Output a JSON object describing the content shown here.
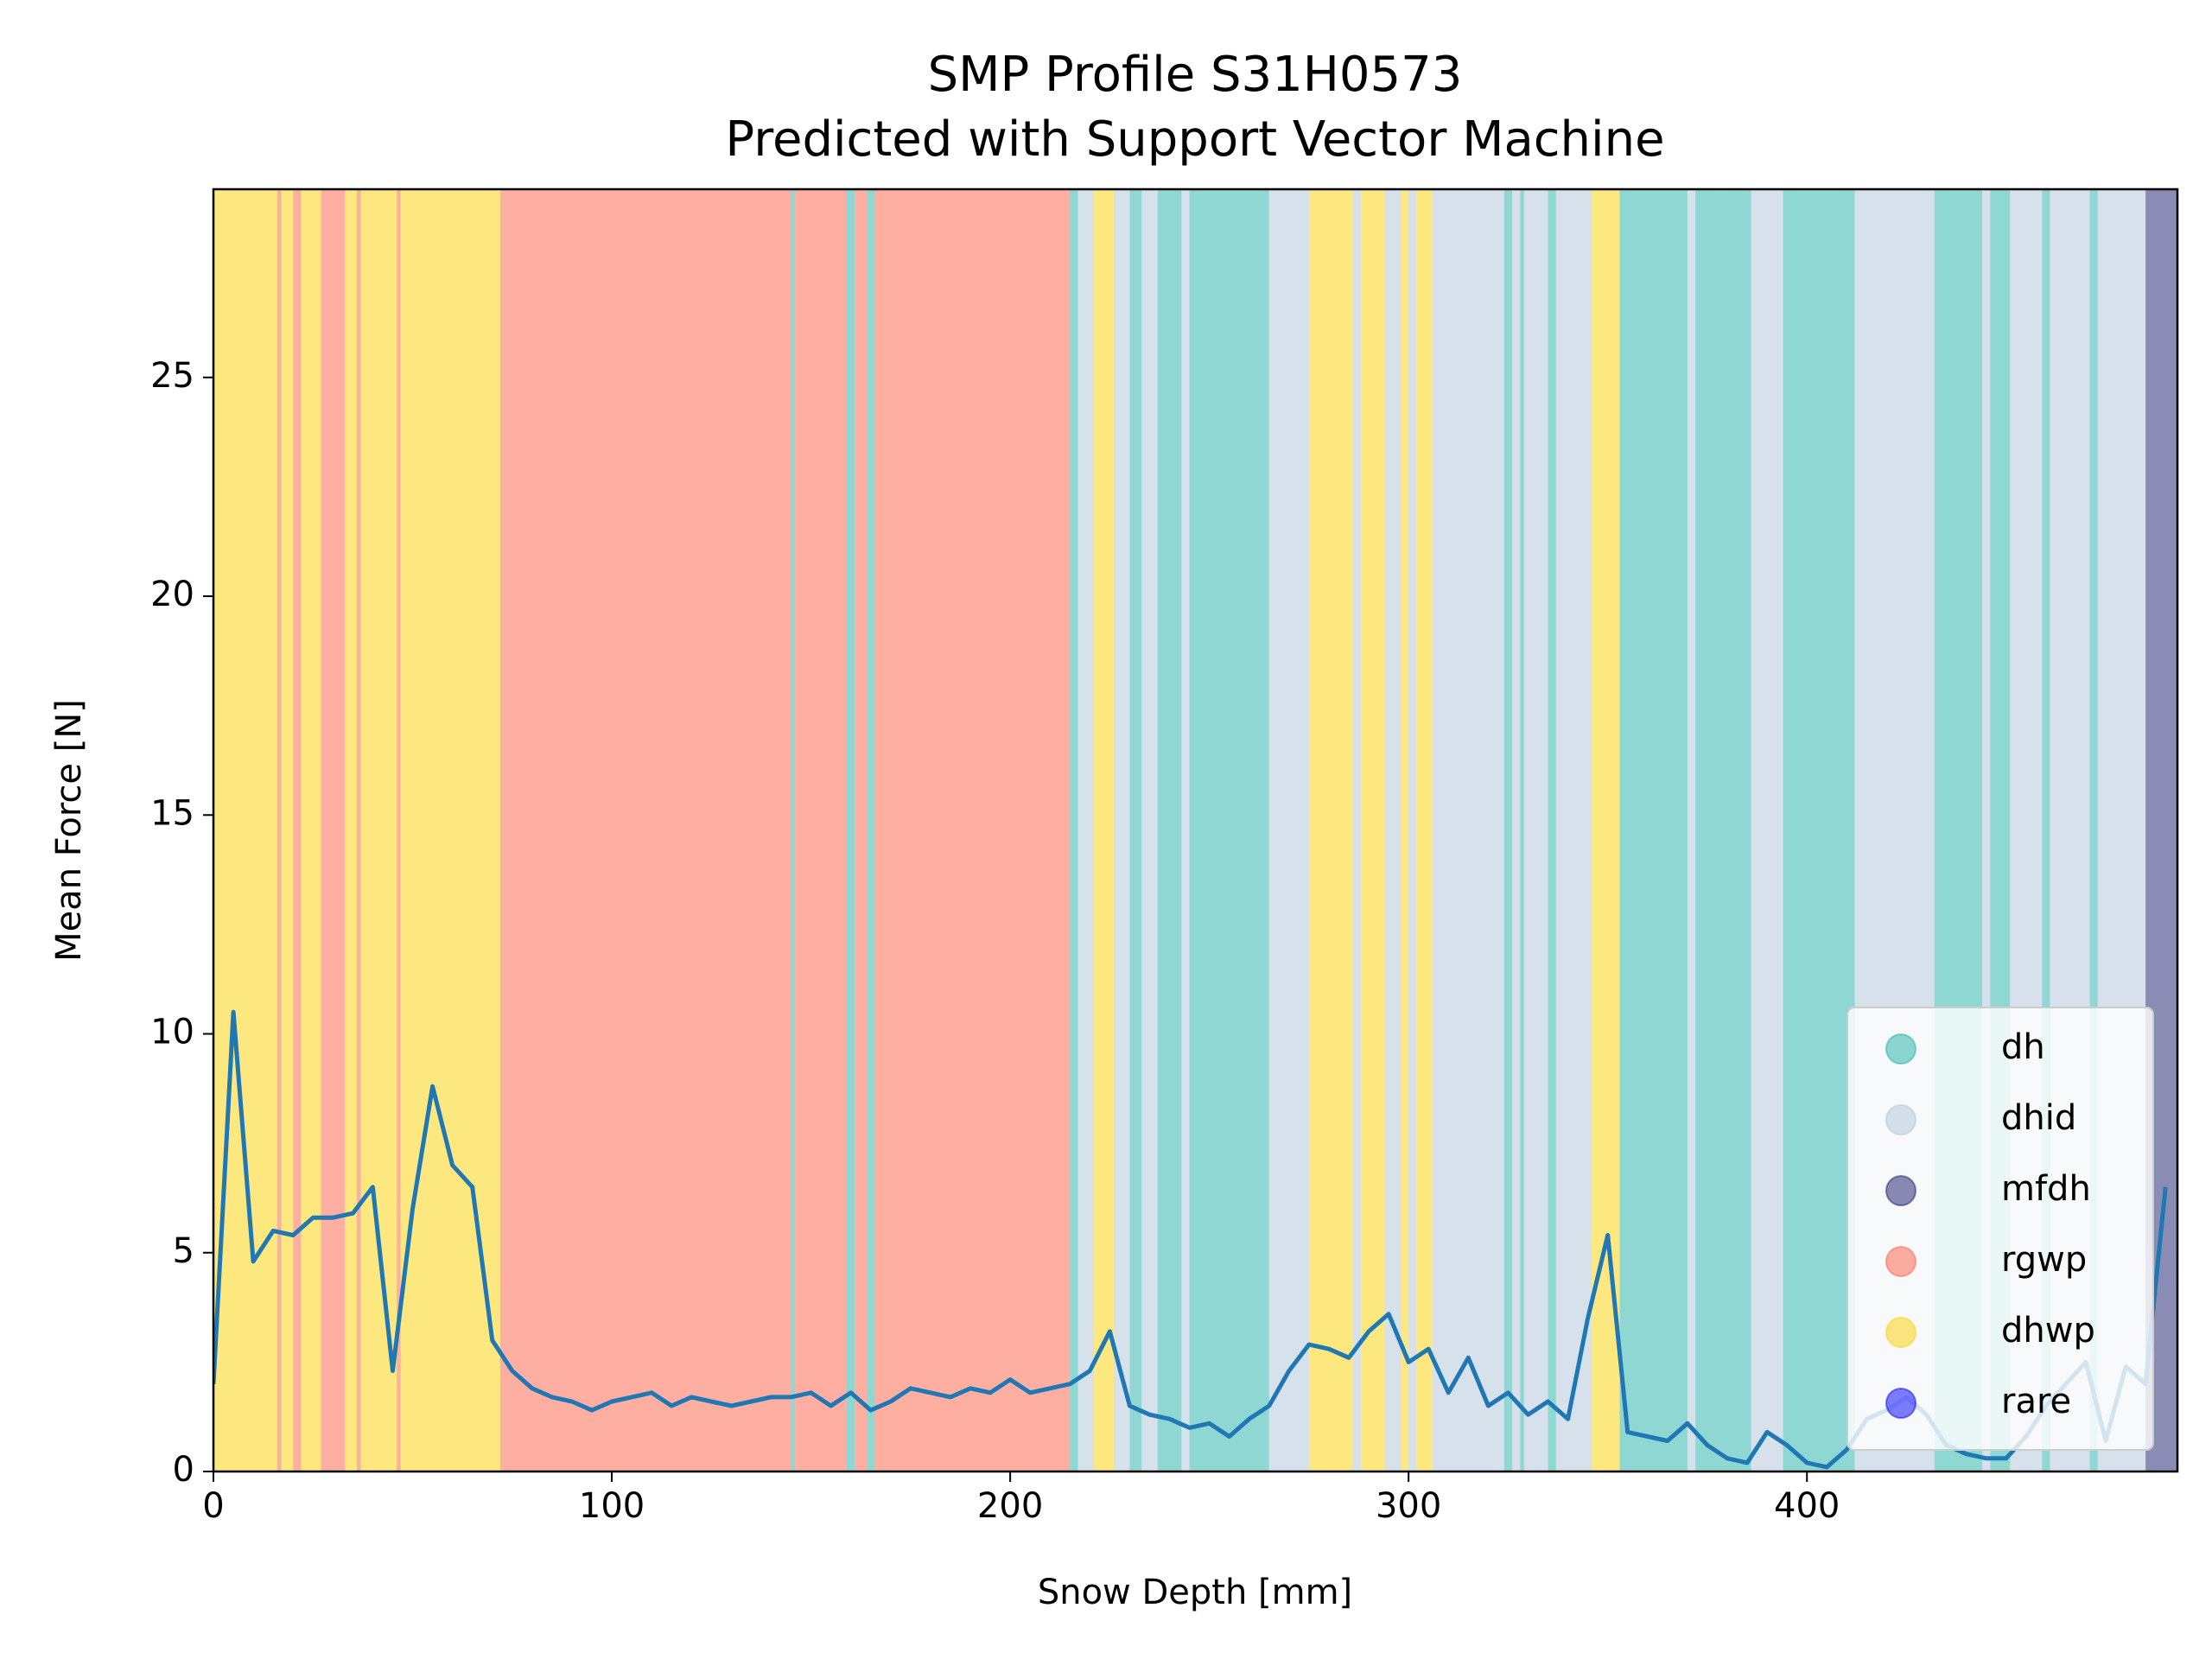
{
  "chart_data": {
    "type": "line",
    "title": "SMP Profile S31H0573",
    "subtitle": "Predicted with Support Vector Machine",
    "x_label": "Snow Depth [mm]",
    "y_label": "Mean Force [N]",
    "xlim": [
      0,
      493
    ],
    "ylim": [
      0,
      29.3
    ],
    "xticks": [
      0,
      100,
      200,
      300,
      400
    ],
    "yticks": [
      0,
      5,
      10,
      15,
      20,
      25
    ],
    "legend_position": "lower right",
    "classes": [
      {
        "name": "dh",
        "color": "#1fb0a5"
      },
      {
        "name": "dhid",
        "color": "#aec3d8"
      },
      {
        "name": "mfdh",
        "color": "#18196b"
      },
      {
        "name": "rgwp",
        "color": "#ff5d45"
      },
      {
        "name": "dhwp",
        "color": "#fcd000"
      },
      {
        "name": "rare",
        "color": "#0000ff"
      }
    ],
    "bands": [
      {
        "start": 0,
        "end": 16,
        "class": "dhwp"
      },
      {
        "start": 16,
        "end": 17,
        "class": "rgwp"
      },
      {
        "start": 17,
        "end": 20,
        "class": "dhwp"
      },
      {
        "start": 20,
        "end": 22,
        "class": "rgwp"
      },
      {
        "start": 22,
        "end": 27,
        "class": "dhwp"
      },
      {
        "start": 27,
        "end": 33,
        "class": "rgwp"
      },
      {
        "start": 33,
        "end": 36,
        "class": "dhwp"
      },
      {
        "start": 36,
        "end": 37,
        "class": "rgwp"
      },
      {
        "start": 37,
        "end": 46,
        "class": "dhwp"
      },
      {
        "start": 46,
        "end": 47,
        "class": "rgwp"
      },
      {
        "start": 47,
        "end": 72,
        "class": "dhwp"
      },
      {
        "start": 72,
        "end": 145,
        "class": "rgwp"
      },
      {
        "start": 145,
        "end": 146,
        "class": "dh"
      },
      {
        "start": 146,
        "end": 159,
        "class": "rgwp"
      },
      {
        "start": 159,
        "end": 161,
        "class": "dh"
      },
      {
        "start": 161,
        "end": 164,
        "class": "rgwp"
      },
      {
        "start": 164,
        "end": 166,
        "class": "dh"
      },
      {
        "start": 166,
        "end": 215,
        "class": "rgwp"
      },
      {
        "start": 215,
        "end": 217,
        "class": "dh"
      },
      {
        "start": 217,
        "end": 221,
        "class": "dhid"
      },
      {
        "start": 221,
        "end": 226,
        "class": "dhwp"
      },
      {
        "start": 226,
        "end": 230,
        "class": "dhid"
      },
      {
        "start": 230,
        "end": 233,
        "class": "dh"
      },
      {
        "start": 233,
        "end": 237,
        "class": "dhid"
      },
      {
        "start": 237,
        "end": 243,
        "class": "dh"
      },
      {
        "start": 243,
        "end": 245,
        "class": "dhid"
      },
      {
        "start": 245,
        "end": 265,
        "class": "dh"
      },
      {
        "start": 265,
        "end": 275,
        "class": "dhid"
      },
      {
        "start": 275,
        "end": 286,
        "class": "dhwp"
      },
      {
        "start": 286,
        "end": 288,
        "class": "dhid"
      },
      {
        "start": 288,
        "end": 294,
        "class": "dhwp"
      },
      {
        "start": 294,
        "end": 298,
        "class": "dhid"
      },
      {
        "start": 298,
        "end": 300,
        "class": "dhwp"
      },
      {
        "start": 300,
        "end": 302,
        "class": "dhid"
      },
      {
        "start": 302,
        "end": 306,
        "class": "dhwp"
      },
      {
        "start": 306,
        "end": 324,
        "class": "dhid"
      },
      {
        "start": 324,
        "end": 326,
        "class": "dh"
      },
      {
        "start": 326,
        "end": 328,
        "class": "dhid"
      },
      {
        "start": 328,
        "end": 329,
        "class": "dh"
      },
      {
        "start": 329,
        "end": 335,
        "class": "dhid"
      },
      {
        "start": 335,
        "end": 337,
        "class": "dh"
      },
      {
        "start": 337,
        "end": 346,
        "class": "dhid"
      },
      {
        "start": 346,
        "end": 353,
        "class": "dhwp"
      },
      {
        "start": 353,
        "end": 370,
        "class": "dh"
      },
      {
        "start": 370,
        "end": 372,
        "class": "dhid"
      },
      {
        "start": 372,
        "end": 386,
        "class": "dh"
      },
      {
        "start": 386,
        "end": 394,
        "class": "dhid"
      },
      {
        "start": 394,
        "end": 412,
        "class": "dh"
      },
      {
        "start": 412,
        "end": 432,
        "class": "dhid"
      },
      {
        "start": 432,
        "end": 444,
        "class": "dh"
      },
      {
        "start": 444,
        "end": 446,
        "class": "dhid"
      },
      {
        "start": 446,
        "end": 451,
        "class": "dh"
      },
      {
        "start": 451,
        "end": 459,
        "class": "dhid"
      },
      {
        "start": 459,
        "end": 461,
        "class": "dh"
      },
      {
        "start": 461,
        "end": 471,
        "class": "dhid"
      },
      {
        "start": 471,
        "end": 473,
        "class": "dh"
      },
      {
        "start": 473,
        "end": 485,
        "class": "dhid"
      },
      {
        "start": 485,
        "end": 493,
        "class": "mfdh"
      }
    ],
    "x": [
      0,
      5,
      10,
      15,
      20,
      25,
      30,
      35,
      40,
      45,
      50,
      55,
      60,
      65,
      70,
      75,
      80,
      85,
      90,
      95,
      100,
      105,
      110,
      115,
      120,
      125,
      130,
      135,
      140,
      145,
      150,
      155,
      160,
      165,
      170,
      175,
      180,
      185,
      190,
      195,
      200,
      205,
      210,
      215,
      220,
      225,
      230,
      235,
      240,
      245,
      250,
      255,
      260,
      265,
      270,
      275,
      280,
      285,
      290,
      295,
      300,
      305,
      310,
      315,
      320,
      325,
      330,
      335,
      340,
      345,
      350,
      355,
      360,
      365,
      370,
      375,
      380,
      385,
      390,
      395,
      400,
      405,
      410,
      415,
      420,
      425,
      430,
      435,
      440,
      445,
      450,
      455,
      460,
      465,
      470,
      475,
      480,
      485,
      490
    ],
    "series": [
      {
        "name": "Mean Force",
        "color": "#1f77b4",
        "values": [
          2.0,
          10.5,
          4.8,
          5.5,
          5.4,
          5.8,
          5.8,
          5.9,
          6.5,
          2.3,
          6.0,
          8.8,
          7.0,
          6.5,
          3.0,
          2.3,
          1.9,
          1.7,
          1.6,
          1.4,
          1.6,
          1.7,
          1.8,
          1.5,
          1.7,
          1.6,
          1.5,
          1.6,
          1.7,
          1.7,
          1.8,
          1.5,
          1.8,
          1.4,
          1.6,
          1.9,
          1.8,
          1.7,
          1.9,
          1.8,
          2.1,
          1.8,
          1.9,
          2.0,
          2.3,
          3.2,
          1.5,
          1.3,
          1.2,
          1.0,
          1.1,
          0.8,
          1.2,
          1.5,
          2.3,
          2.9,
          2.8,
          2.6,
          3.2,
          3.6,
          2.5,
          2.8,
          1.8,
          2.6,
          1.5,
          1.8,
          1.3,
          1.6,
          1.2,
          3.5,
          5.4,
          0.9,
          0.8,
          0.7,
          1.1,
          0.6,
          0.3,
          0.2,
          0.9,
          0.6,
          0.2,
          0.1,
          0.5,
          1.2,
          1.4,
          1.7,
          1.3,
          0.6,
          0.4,
          0.3,
          0.3,
          0.8,
          1.5,
          2.0,
          2.5,
          0.7,
          2.4,
          2.0,
          6.5
        ]
      }
    ]
  }
}
